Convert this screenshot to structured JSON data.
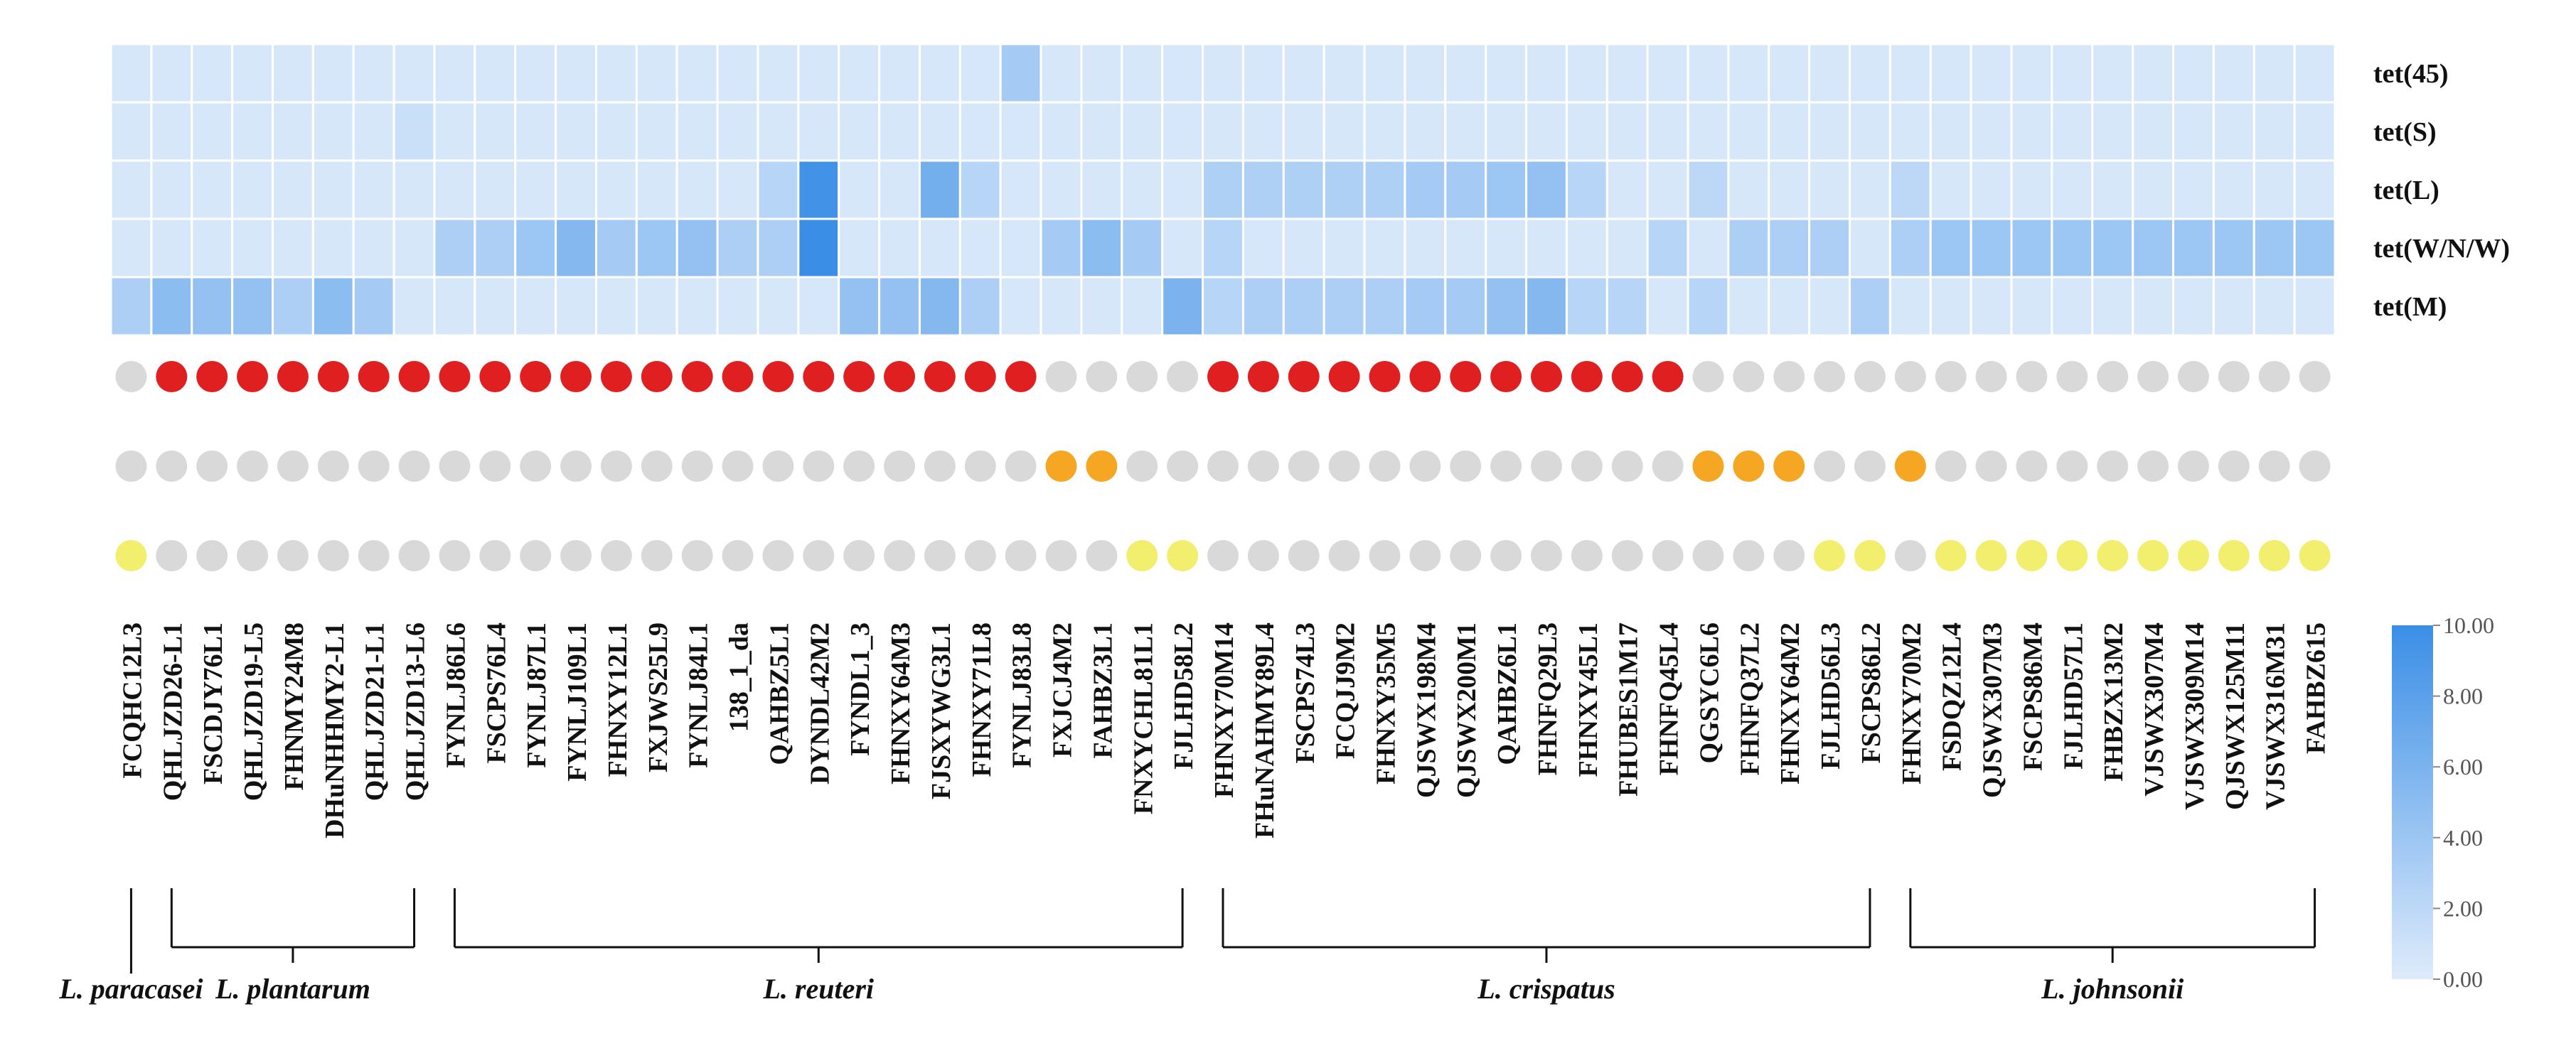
{
  "chart_data": {
    "type": "heatmap",
    "title": "",
    "genes": [
      "tet(45)",
      "tet(S)",
      "tet(L)",
      "tet(W/N/W)",
      "tet(M)"
    ],
    "strains": [
      "FCQHC12L3",
      "QHLJZD26-L1",
      "FSCDJY76L1",
      "QHLJZD19-L5",
      "FHNMY24M8",
      "DHuNHHMY2-L1",
      "QHLJZD21-L1",
      "QHLJZD13-L6",
      "FYNLJ86L6",
      "FSCPS76L4",
      "FYNLJ87L1",
      "FYNLJ109L1",
      "FHNXY12L1",
      "FXJWS25L9",
      "FYNLJ84L1",
      "138_1_da",
      "QAHBZ5L1",
      "DYNDL42M2",
      "FYNDL1_3",
      "FHNXY64M3",
      "FJSXYWG3L1",
      "FHNXY71L8",
      "FYNLJ83L8",
      "FXJCJ4M2",
      "FAHBZ3L1",
      "FNXYCHL81L1",
      "FJLHD58L2",
      "FHNXY70M14",
      "FHuNAHMY89L4",
      "FSCPS74L3",
      "FCQJJ9M2",
      "FHNXY35M5",
      "QJSWX198M4",
      "QJSWX200M1",
      "QAHBZ6L1",
      "FHNFQ29L3",
      "FHNXY45L1",
      "FHUBES1M17",
      "FHNFQ45L4",
      "QGSYC6L6",
      "FHNFQ37L2",
      "FHNXY64M2",
      "FJLHD56L3",
      "FSCPS86L2",
      "FHNXY70M2",
      "FSDQZ12L4",
      "QJSWX307M3",
      "FSCPS86M4",
      "FJLHD57L1",
      "FHBZX13M2",
      "VJSWX307M4",
      "VJSWX309M14",
      "QJSWX125M11",
      "VJSWX316M31",
      "FAHBZ615"
    ],
    "values": [
      [
        0.4,
        0.4,
        0.4,
        0.4,
        0.4,
        0.4,
        0.4,
        0.4,
        0.4,
        0.4,
        0.4,
        0.4,
        0.4,
        0.4,
        0.4,
        0.4,
        0.4,
        0.4,
        0.4,
        0.4,
        0.4,
        0.4,
        3.5,
        0.4,
        0.4,
        0.4,
        0.4,
        0.4,
        0.4,
        0.4,
        0.4,
        0.4,
        0.4,
        0.4,
        0.4,
        0.4,
        0.4,
        0.4,
        0.4,
        0.4,
        0.4,
        0.4,
        0.4,
        0.4,
        0.4,
        0.4,
        0.4,
        0.4,
        0.4,
        0.4,
        0.4,
        0.4,
        0.4,
        0.4,
        0.4
      ],
      [
        0.4,
        0.4,
        0.4,
        0.4,
        0.4,
        0.4,
        0.4,
        1.2,
        0.4,
        0.4,
        0.4,
        0.4,
        0.4,
        0.4,
        0.4,
        0.4,
        0.4,
        0.4,
        0.4,
        0.4,
        0.4,
        0.4,
        0.4,
        0.4,
        0.4,
        0.4,
        0.4,
        0.4,
        0.4,
        0.4,
        0.4,
        0.4,
        0.4,
        0.4,
        0.4,
        0.4,
        0.4,
        0.4,
        0.4,
        0.4,
        0.4,
        0.4,
        0.4,
        0.4,
        0.4,
        0.4,
        0.4,
        0.4,
        0.4,
        0.4,
        0.4,
        0.4,
        0.4,
        0.4,
        0.4
      ],
      [
        0.4,
        0.4,
        0.4,
        0.4,
        0.4,
        0.4,
        0.4,
        0.4,
        0.4,
        0.4,
        0.4,
        0.4,
        0.4,
        0.4,
        0.4,
        0.4,
        2.4,
        9.5,
        0.4,
        0.4,
        6.5,
        2.4,
        0.4,
        0.4,
        0.4,
        0.4,
        0.4,
        2.9,
        2.9,
        2.9,
        2.9,
        2.9,
        3.5,
        3.5,
        4.0,
        4.5,
        2.4,
        0.4,
        0.4,
        2.0,
        0.4,
        0.4,
        0.4,
        0.4,
        2.0,
        0.4,
        0.4,
        0.4,
        0.4,
        0.4,
        0.4,
        0.4,
        0.4,
        0.4,
        0.4
      ],
      [
        0.4,
        0.4,
        0.4,
        0.4,
        0.4,
        0.4,
        0.4,
        0.4,
        3.0,
        3.0,
        4.0,
        5.5,
        3.5,
        4.0,
        4.5,
        3.0,
        3.0,
        10.0,
        0.4,
        0.4,
        0.4,
        0.4,
        0.4,
        3.5,
        5.0,
        3.5,
        0.4,
        2.4,
        0.4,
        0.4,
        0.4,
        0.4,
        0.4,
        0.4,
        0.4,
        0.4,
        0.4,
        0.4,
        2.4,
        0.4,
        3.0,
        3.0,
        3.0,
        0.4,
        3.0,
        4.0,
        4.0,
        4.0,
        4.0,
        4.0,
        4.0,
        4.0,
        4.0,
        4.0,
        4.0
      ],
      [
        3.0,
        5.0,
        4.5,
        4.5,
        3.0,
        5.0,
        3.5,
        0.4,
        0.4,
        0.4,
        0.4,
        0.4,
        0.4,
        0.4,
        0.4,
        0.4,
        0.4,
        0.4,
        4.5,
        4.5,
        5.5,
        3.0,
        0.4,
        0.4,
        0.4,
        0.4,
        6.0,
        2.4,
        3.0,
        3.0,
        3.0,
        3.0,
        3.5,
        3.5,
        4.5,
        5.5,
        2.4,
        2.4,
        0.4,
        2.4,
        0.4,
        0.4,
        0.4,
        3.0,
        0.4,
        0.4,
        0.4,
        0.4,
        0.4,
        0.4,
        0.4,
        0.4,
        0.4,
        0.4,
        0.4
      ]
    ],
    "dot_rows": [
      {
        "color_on": "#e02020",
        "states": [
          0,
          1,
          1,
          1,
          1,
          1,
          1,
          1,
          1,
          1,
          1,
          1,
          1,
          1,
          1,
          1,
          1,
          1,
          1,
          1,
          1,
          1,
          1,
          0,
          0,
          0,
          0,
          1,
          1,
          1,
          1,
          1,
          1,
          1,
          1,
          1,
          1,
          1,
          1,
          0,
          0,
          0,
          0,
          0,
          0,
          0,
          0,
          0,
          0,
          0,
          0,
          0,
          0,
          0,
          0
        ]
      },
      {
        "color_on": "#f5a623",
        "states": [
          0,
          0,
          0,
          0,
          0,
          0,
          0,
          0,
          0,
          0,
          0,
          0,
          0,
          0,
          0,
          0,
          0,
          0,
          0,
          0,
          0,
          0,
          0,
          1,
          1,
          0,
          0,
          0,
          0,
          0,
          0,
          0,
          0,
          0,
          0,
          0,
          0,
          0,
          0,
          1,
          1,
          1,
          0,
          0,
          1,
          0,
          0,
          0,
          0,
          0,
          0,
          0,
          0,
          0,
          0
        ]
      },
      {
        "color_on": "#f2ef6e",
        "states": [
          1,
          0,
          0,
          0,
          0,
          0,
          0,
          0,
          0,
          0,
          0,
          0,
          0,
          0,
          0,
          0,
          0,
          0,
          0,
          0,
          0,
          0,
          0,
          0,
          0,
          1,
          1,
          0,
          0,
          0,
          0,
          0,
          0,
          0,
          0,
          0,
          0,
          0,
          0,
          0,
          0,
          0,
          1,
          1,
          0,
          1,
          1,
          1,
          1,
          1,
          1,
          1,
          1,
          1,
          1
        ]
      }
    ],
    "dot_off_color": "#d9d9d9",
    "groups": [
      {
        "name": "L. paracasei",
        "start": 0,
        "end": 0
      },
      {
        "name": "L. plantarum",
        "start": 1,
        "end": 7
      },
      {
        "name": "L. reuteri",
        "start": 8,
        "end": 26
      },
      {
        "name": "L. crispatus",
        "start": 27,
        "end": 43
      },
      {
        "name": "L. johnsonii",
        "start": 44,
        "end": 54
      }
    ],
    "colorbar": {
      "min": 0,
      "max": 10,
      "ticks": [
        "0.00",
        "2.00",
        "4.00",
        "6.00",
        "8.00",
        "10.00"
      ],
      "color_low": "#deebfb",
      "color_high": "#3a8ee6"
    }
  }
}
